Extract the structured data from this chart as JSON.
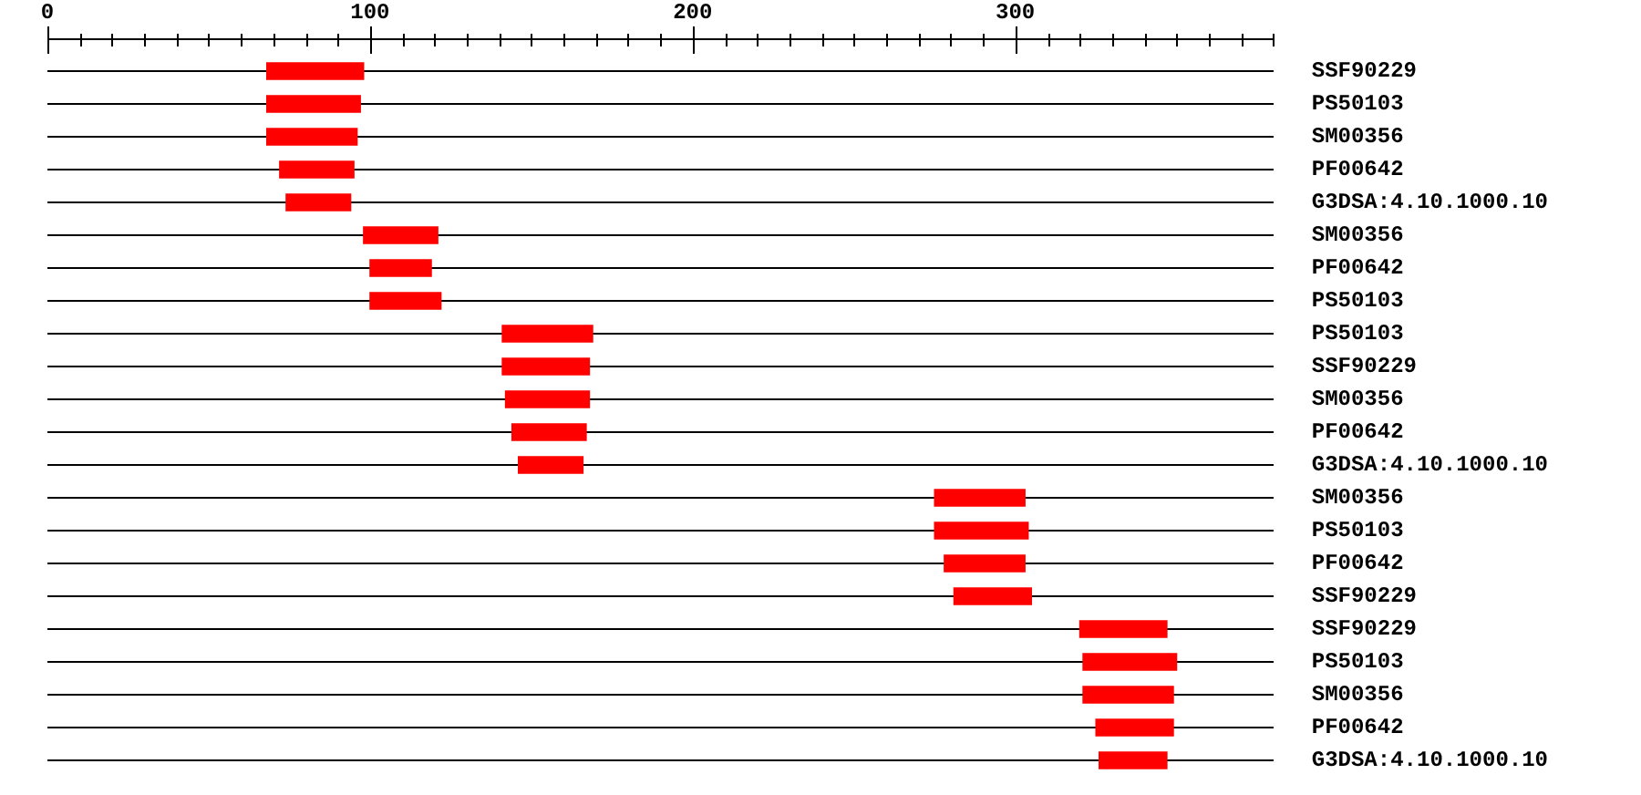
{
  "chart_data": {
    "type": "bar",
    "orientation": "horizontal",
    "categories": [
      "SSF90229",
      "PS50103",
      "SM00356",
      "PF00642",
      "G3DSA:4.10.1000.10",
      "SM00356",
      "PF00642",
      "PS50103",
      "PS50103",
      "SSF90229",
      "SM00356",
      "PF00642",
      "G3DSA:4.10.1000.10",
      "SM00356",
      "PS50103",
      "PF00642",
      "SSF90229",
      "SSF90229",
      "PS50103",
      "SM00356",
      "PF00642",
      "G3DSA:4.10.1000.10"
    ],
    "base": [
      68,
      68,
      68,
      72,
      74,
      98,
      100,
      100,
      141,
      141,
      142,
      144,
      146,
      275,
      275,
      278,
      281,
      320,
      321,
      321,
      325,
      326
    ],
    "values": [
      30,
      29,
      28,
      23,
      20,
      23,
      19,
      22,
      28,
      27,
      26,
      23,
      20,
      28,
      29,
      25,
      24,
      27,
      29,
      28,
      24,
      21
    ],
    "color": "#ff0000",
    "xlim": [
      0,
      380
    ],
    "xticks": [
      0,
      {
        "value": 10,
        "label": null
      },
      {
        "value": 20,
        "label": null
      },
      {
        "value": 30,
        "label": null
      },
      {
        "value": 40,
        "label": null
      },
      {
        "value": 50,
        "label": null
      },
      {
        "value": 60,
        "label": null
      },
      {
        "value": 70,
        "label": null
      },
      {
        "value": 80,
        "label": null
      },
      {
        "value": 90,
        "label": null
      },
      100,
      {
        "value": 110,
        "label": null
      },
      {
        "value": 120,
        "label": null
      },
      {
        "value": 130,
        "label": null
      },
      {
        "value": 140,
        "label": null
      },
      {
        "value": 150,
        "label": null
      },
      {
        "value": 160,
        "label": null
      },
      {
        "value": 170,
        "label": null
      },
      {
        "value": 180,
        "label": null
      },
      {
        "value": 190,
        "label": null
      },
      200,
      {
        "value": 210,
        "label": null
      },
      {
        "value": 220,
        "label": null
      },
      {
        "value": 230,
        "label": null
      },
      {
        "value": 240,
        "label": null
      },
      {
        "value": 250,
        "label": null
      },
      {
        "value": 260,
        "label": null
      },
      {
        "value": 270,
        "label": null
      },
      {
        "value": 280,
        "label": null
      },
      {
        "value": 290,
        "label": null
      },
      300,
      {
        "value": 310,
        "label": null
      },
      {
        "value": 320,
        "label": null
      },
      {
        "value": 330,
        "label": null
      },
      {
        "value": 340,
        "label": null
      },
      {
        "value": 350,
        "label": null
      },
      {
        "value": 360,
        "label": null
      },
      {
        "value": 370,
        "label": null
      },
      {
        "value": 380,
        "label": null
      }
    ],
    "grid": "y"
  }
}
